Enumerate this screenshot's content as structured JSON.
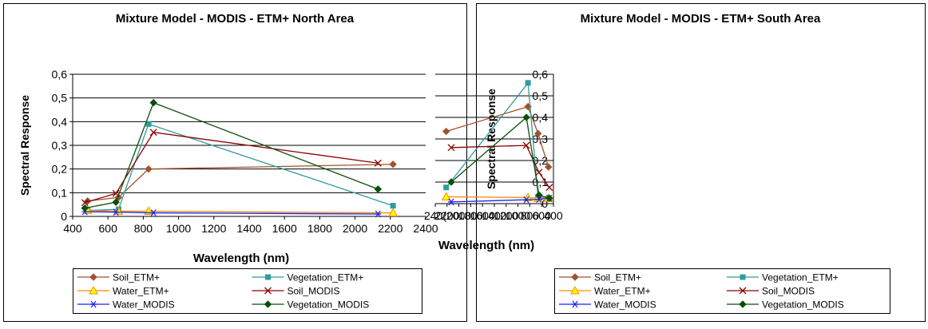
{
  "chart_data": [
    {
      "type": "line",
      "title": "Mixture Model - MODIS - ETM+ North Area",
      "xlabel": "Wavelength (nm)",
      "ylabel": "Spectral Response",
      "xlim": [
        400,
        2400
      ],
      "ylim": [
        0,
        0.6
      ],
      "xticks": [
        "400",
        "600",
        "800",
        "1000",
        "1200",
        "1400",
        "1600",
        "1800",
        "2000",
        "2200",
        "2400"
      ],
      "yticks": [
        "0",
        "0,1",
        "0,2",
        "0,3",
        "0,4",
        "0,5",
        "0,6"
      ],
      "grid": "horizontal",
      "legend_position": "bottom",
      "series": [
        {
          "name": "Soil_ETM+",
          "color": "#A0522D",
          "marker": "diamond",
          "points": [
            [
              485,
              0.065
            ],
            [
              660,
              0.08
            ],
            [
              830,
              0.2
            ],
            [
              2215,
              0.22
            ]
          ]
        },
        {
          "name": "Vegetation_ETM+",
          "color": "#2F9C9C",
          "marker": "square",
          "points": [
            [
              485,
              0.025
            ],
            [
              660,
              0.03
            ],
            [
              830,
              0.39
            ],
            [
              2215,
              0.045
            ]
          ]
        },
        {
          "name": "Water_ETM+",
          "color": "#FF8C00",
          "marker": "triangle",
          "points": [
            [
              485,
              0.025
            ],
            [
              660,
              0.022
            ],
            [
              830,
              0.022
            ],
            [
              2215,
              0.015
            ]
          ]
        },
        {
          "name": "Soil_MODIS",
          "color": "#8B0000",
          "marker": "x",
          "points": [
            [
              469,
              0.058
            ],
            [
              645,
              0.097
            ],
            [
              858,
              0.355
            ],
            [
              2130,
              0.225
            ]
          ]
        },
        {
          "name": "Water_MODIS",
          "color": "#1E1EFF",
          "marker": "star",
          "points": [
            [
              469,
              0.02
            ],
            [
              645,
              0.018
            ],
            [
              858,
              0.015
            ],
            [
              2130,
              0.01
            ]
          ]
        },
        {
          "name": "Vegetation_MODIS",
          "color": "#0A4F0A",
          "marker": "diamond",
          "points": [
            [
              469,
              0.035
            ],
            [
              645,
              0.06
            ],
            [
              858,
              0.48
            ],
            [
              2130,
              0.115
            ]
          ]
        }
      ]
    },
    {
      "type": "line",
      "title": "Mixture Model - MODIS - ETM+ South Area",
      "xlabel": "Wavelength (nm)",
      "ylabel": "Spectral Response",
      "xlim": [
        400,
        2400
      ],
      "ylim": [
        0,
        0.6
      ],
      "xticks": [
        "400",
        "600",
        "800",
        "1000",
        "1200",
        "1400",
        "1600",
        "1800",
        "2000",
        "2200",
        "240("
      ],
      "yticks": [
        "0",
        "0,1",
        "0,2",
        "0,3",
        "0,4",
        "0,5",
        "0,6"
      ],
      "grid": "horizontal",
      "legend_position": "bottom",
      "series": [
        {
          "name": "Soil_ETM+",
          "color": "#A0522D",
          "marker": "diamond",
          "points": [
            [
              485,
              0.17
            ],
            [
              660,
              0.325
            ],
            [
              830,
              0.45
            ],
            [
              2215,
              0.335
            ]
          ]
        },
        {
          "name": "Vegetation_ETM+",
          "color": "#2F9C9C",
          "marker": "square",
          "points": [
            [
              485,
              0.025
            ],
            [
              660,
              0.03
            ],
            [
              830,
              0.56
            ],
            [
              2215,
              0.075
            ]
          ]
        },
        {
          "name": "Water_ETM+",
          "color": "#FF8C00",
          "marker": "triangle",
          "points": [
            [
              485,
              0.025
            ],
            [
              660,
              0.025
            ],
            [
              830,
              0.028
            ],
            [
              2215,
              0.032
            ]
          ]
        },
        {
          "name": "Soil_MODIS",
          "color": "#8B0000",
          "marker": "x",
          "points": [
            [
              469,
              0.075
            ],
            [
              645,
              0.145
            ],
            [
              858,
              0.27
            ],
            [
              2130,
              0.26
            ]
          ]
        },
        {
          "name": "Water_MODIS",
          "color": "#1E1EFF",
          "marker": "star",
          "points": [
            [
              469,
              0.025
            ],
            [
              645,
              0.02
            ],
            [
              858,
              0.018
            ],
            [
              2130,
              0.008
            ]
          ]
        },
        {
          "name": "Vegetation_MODIS",
          "color": "#0A4F0A",
          "marker": "diamond",
          "points": [
            [
              469,
              0.025
            ],
            [
              645,
              0.04
            ],
            [
              858,
              0.4
            ],
            [
              2130,
              0.1
            ]
          ]
        }
      ]
    }
  ]
}
